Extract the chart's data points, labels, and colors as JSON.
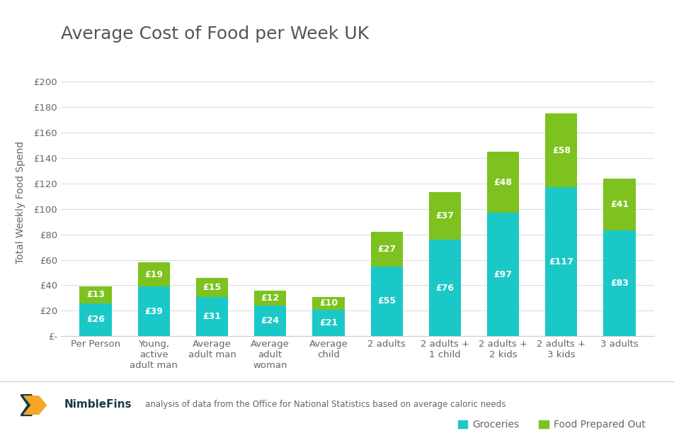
{
  "title": "Average Cost of Food per Week UK",
  "ylabel": "Total Weekly Food Spend",
  "categories": [
    "Per Person",
    "Young,\nactive\nadult man",
    "Average\nadult man",
    "Average\nadult\nwoman",
    "Average\nchild",
    "2 adults",
    "2 adults +\n1 child",
    "2 adults +\n2 kids",
    "2 adults +\n3 kids",
    "3 adults"
  ],
  "groceries": [
    26,
    39,
    31,
    24,
    21,
    55,
    76,
    97,
    117,
    83
  ],
  "food_out": [
    13,
    19,
    15,
    12,
    10,
    27,
    37,
    48,
    58,
    41
  ],
  "grocery_color": "#1BC8C8",
  "food_out_color": "#7DC21E",
  "background_color": "#FFFFFF",
  "grid_color": "#DDDDDD",
  "title_fontsize": 18,
  "label_fontsize": 10,
  "tick_fontsize": 9.5,
  "bar_label_fontsize": 9,
  "ylim": [
    0,
    210
  ],
  "yticks": [
    0,
    20,
    40,
    60,
    80,
    100,
    120,
    140,
    160,
    180,
    200
  ],
  "ytick_labels": [
    "£-",
    "£20",
    "£40",
    "£60",
    "£80",
    "£100",
    "£120",
    "£140",
    "£160",
    "£180",
    "£200"
  ],
  "legend_labels": [
    "Groceries",
    "Food Prepared Out"
  ],
  "footer_text": "analysis of data from the Office for National Statistics based on average caloric needs",
  "nimblefins_text": "NimbleFins",
  "text_color": "#666666",
  "title_color": "#555555",
  "logo_arrow_color": "#F5A623",
  "logo_dark_color": "#1A3A4A"
}
